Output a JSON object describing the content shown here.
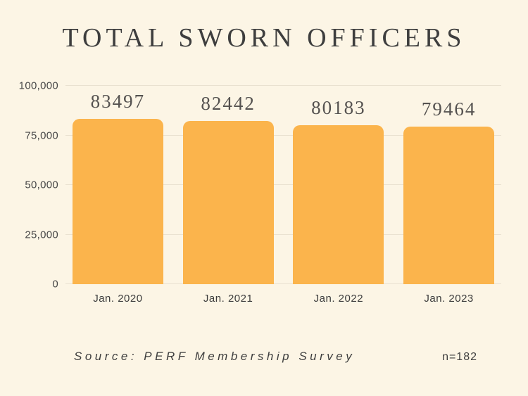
{
  "title": "TOTAL SWORN OFFICERS",
  "footer": {
    "source": "Source: PERF Membership Survey",
    "n_label": "n=182"
  },
  "colors": {
    "background": "#FCF5E5",
    "bar": "#FBB44C",
    "title_text": "#3E3E3E",
    "gridline": "#E9E1D0"
  },
  "chart_data": {
    "type": "bar",
    "title": "TOTAL SWORN OFFICERS",
    "categories": [
      "Jan. 2020",
      "Jan. 2021",
      "Jan. 2022",
      "Jan. 2023"
    ],
    "values": [
      83497,
      82442,
      80183,
      79464
    ],
    "value_labels": [
      "83497",
      "82442",
      "80183",
      "79464"
    ],
    "xlabel": "",
    "ylabel": "",
    "ylim": [
      0,
      100000
    ],
    "yticks": [
      0,
      25000,
      50000,
      75000,
      100000
    ],
    "ytick_labels": [
      "0",
      "25,000",
      "50,000",
      "75,000",
      "100,000"
    ],
    "grid": true,
    "legend": "none",
    "bar_color": "#FBB44C",
    "annotation": "n=182"
  }
}
